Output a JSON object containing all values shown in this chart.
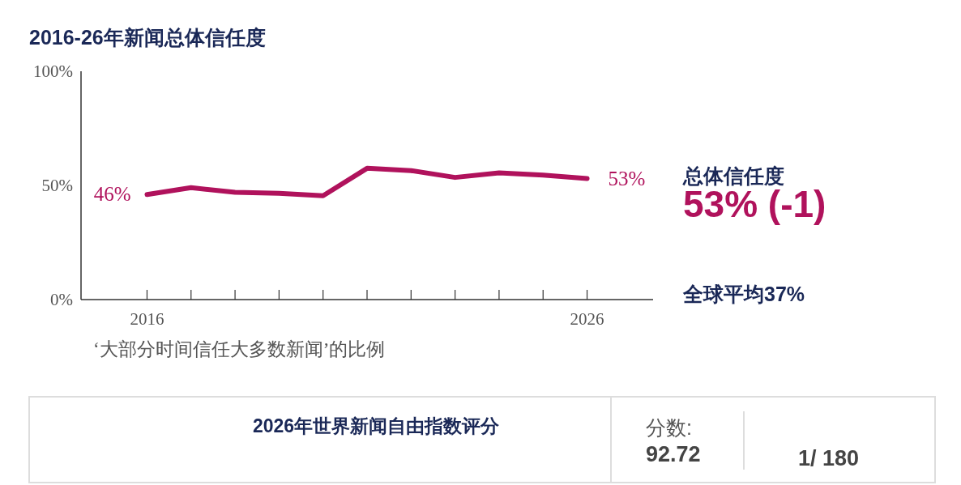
{
  "chart_data": {
    "type": "line",
    "title": "2016-26年新闻总体信任度",
    "xlabel": "‘大部分时间信任大多数新闻’的比例",
    "x": [
      2016,
      2017,
      2018,
      2019,
      2020,
      2021,
      2022,
      2023,
      2024,
      2025,
      2026
    ],
    "series": [
      {
        "color": "#b0125c",
        "values": [
          46,
          49,
          47,
          46.5,
          45.5,
          57.5,
          56.5,
          53.5,
          55.5,
          54.5,
          53
        ],
        "value_labels": [
          "46%",
          null,
          null,
          null,
          null,
          null,
          null,
          null,
          null,
          null,
          "53%"
        ]
      }
    ],
    "xlim": [
      2014.5,
      2027.5
    ],
    "xticks": [
      2016,
      {
        "value": 2017,
        "label": null
      },
      {
        "value": 2018,
        "label": null
      },
      {
        "value": 2019,
        "label": null
      },
      {
        "value": 2020,
        "label": null
      },
      {
        "value": 2021,
        "label": null
      },
      {
        "value": 2022,
        "label": null
      },
      {
        "value": 2023,
        "label": null
      },
      {
        "value": 2024,
        "label": null
      },
      {
        "value": 2025,
        "label": null
      },
      2026
    ],
    "ylim": [
      0,
      100
    ],
    "yticks": [
      {
        "value": 0,
        "label": "0%"
      },
      {
        "value": 50,
        "label": "50%"
      },
      {
        "value": 100,
        "label": "100%"
      }
    ],
    "marker": "none",
    "line_style": "solid",
    "annotations": [
      "总体信任度",
      "53% (-1)",
      "全球平均37%",
      "2026年世界新闻自由指数评分",
      "分数:",
      "92.72",
      "1/ 180"
    ]
  }
}
